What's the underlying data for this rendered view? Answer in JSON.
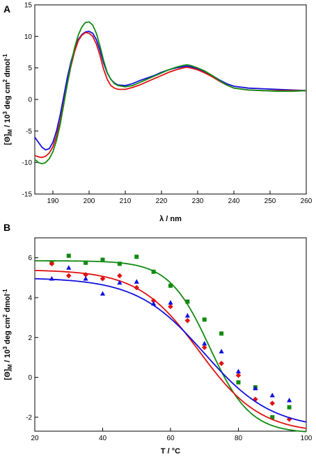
{
  "chart_data": [
    {
      "type": "line",
      "panel_label": "A",
      "xlabel": "λ / nm",
      "ylabel": "[Θ]",
      "ylabel_sub": "M",
      "ylabel_rest": " / 10",
      "ylabel_sup": "3",
      "ylabel_units": " deg cm",
      "ylabel_sup2": "2",
      "ylabel_units2": " dmol",
      "ylabel_sup3": "-1",
      "xlim": [
        185,
        260
      ],
      "ylim": [
        -15,
        15
      ],
      "xticks": [
        190,
        200,
        210,
        220,
        230,
        240,
        250,
        260
      ],
      "yticks": [
        -15,
        -10,
        -5,
        0,
        5,
        10,
        15
      ],
      "grid": false,
      "series": [
        {
          "color": "#1010e0",
          "x": [
            185,
            186,
            187,
            188,
            189,
            190,
            191,
            192,
            193,
            194,
            195,
            196,
            197,
            198,
            199,
            200,
            201,
            202,
            203,
            204,
            205,
            206,
            207,
            208,
            210,
            212,
            214,
            216,
            218,
            220,
            222,
            224,
            226,
            227,
            228,
            230,
            232,
            234,
            236,
            238,
            240,
            244,
            248,
            252,
            256,
            260
          ],
          "y": [
            -6.0,
            -6.8,
            -7.6,
            -8.0,
            -7.8,
            -6.8,
            -5.0,
            -2.5,
            0.5,
            3.5,
            6.0,
            8.0,
            9.5,
            10.3,
            10.7,
            10.8,
            10.5,
            9.5,
            7.8,
            5.8,
            4.2,
            3.2,
            2.6,
            2.3,
            2.2,
            2.5,
            3.0,
            3.4,
            3.8,
            4.3,
            4.7,
            5.0,
            5.2,
            5.3,
            5.2,
            4.9,
            4.4,
            3.8,
            3.1,
            2.5,
            2.1,
            1.8,
            1.7,
            1.6,
            1.5,
            1.4
          ]
        },
        {
          "color": "#e01010",
          "x": [
            185,
            186,
            187,
            188,
            189,
            190,
            191,
            192,
            193,
            194,
            195,
            196,
            197,
            198,
            199,
            200,
            201,
            202,
            203,
            204,
            205,
            206,
            207,
            208,
            210,
            212,
            214,
            216,
            218,
            220,
            222,
            224,
            226,
            227,
            228,
            230,
            232,
            234,
            236,
            238,
            240,
            244,
            248,
            252,
            256,
            260
          ],
          "y": [
            -8.9,
            -9.1,
            -9.2,
            -9.0,
            -8.5,
            -7.5,
            -5.8,
            -3.5,
            -0.5,
            2.5,
            5.3,
            7.6,
            9.3,
            10.2,
            10.6,
            10.5,
            10.0,
            8.8,
            7.0,
            4.8,
            3.2,
            2.2,
            1.8,
            1.6,
            1.6,
            1.9,
            2.3,
            2.8,
            3.3,
            3.8,
            4.3,
            4.7,
            5.0,
            5.1,
            5.0,
            4.7,
            4.2,
            3.6,
            2.9,
            2.3,
            1.8,
            1.5,
            1.4,
            1.4,
            1.4,
            1.4
          ]
        },
        {
          "color": "#108a10",
          "x": [
            185,
            186,
            187,
            188,
            189,
            190,
            191,
            192,
            193,
            194,
            195,
            196,
            197,
            198,
            199,
            200,
            201,
            202,
            203,
            204,
            205,
            206,
            207,
            208,
            210,
            212,
            214,
            216,
            218,
            220,
            222,
            224,
            226,
            227,
            228,
            230,
            232,
            234,
            236,
            238,
            240,
            244,
            248,
            252,
            256,
            260
          ],
          "y": [
            -9.5,
            -10.0,
            -10.2,
            -10.0,
            -9.4,
            -8.3,
            -6.5,
            -4.0,
            -0.8,
            2.5,
            5.6,
            8.2,
            10.2,
            11.5,
            12.2,
            12.3,
            11.8,
            10.5,
            8.5,
            6.2,
            4.3,
            3.2,
            2.5,
            2.2,
            2.0,
            2.2,
            2.7,
            3.2,
            3.7,
            4.2,
            4.7,
            5.1,
            5.4,
            5.5,
            5.4,
            5.0,
            4.5,
            3.8,
            3.0,
            2.3,
            1.8,
            1.5,
            1.4,
            1.3,
            1.3,
            1.4
          ]
        }
      ]
    },
    {
      "type": "scatter",
      "panel_label": "B",
      "xlabel": "T / °C",
      "ylabel": "[Θ]",
      "ylabel_sub": "M",
      "ylabel_rest": " / 10",
      "ylabel_sup": "3",
      "ylabel_units": " deg cm",
      "ylabel_sup2": "2",
      "ylabel_units2": " dmol",
      "ylabel_sup3": "-1",
      "xlim": [
        20,
        100
      ],
      "ylim": [
        -2.7,
        7.0
      ],
      "xticks": [
        20,
        40,
        60,
        80,
        100
      ],
      "yticks": [
        -2,
        0,
        2,
        4,
        6
      ],
      "grid": false,
      "series": [
        {
          "color": "#108a10",
          "marker": "square",
          "x": [
            25,
            30,
            35,
            40,
            45,
            50,
            55,
            60,
            65,
            70,
            75,
            80,
            85,
            90,
            95
          ],
          "y": [
            5.75,
            6.1,
            5.75,
            5.9,
            5.7,
            6.05,
            5.3,
            4.6,
            3.8,
            2.9,
            2.2,
            -0.25,
            -0.5,
            -2.0,
            -1.5
          ],
          "fit": {
            "top": 5.85,
            "bottom": -2.8,
            "tm": 71.5,
            "width": 6.0
          }
        },
        {
          "color": "#e01010",
          "marker": "diamond",
          "x": [
            25,
            30,
            35,
            40,
            45,
            50,
            55,
            60,
            65,
            70,
            75,
            80,
            85,
            90,
            95
          ],
          "y": [
            5.7,
            5.1,
            5.15,
            4.95,
            5.1,
            4.5,
            3.85,
            3.55,
            2.85,
            1.5,
            0.7,
            0.1,
            -1.1,
            -1.3,
            -2.1
          ],
          "fit": {
            "top": 5.4,
            "bottom": -2.8,
            "tm": 68.5,
            "width": 9.0
          }
        },
        {
          "color": "#1010e0",
          "marker": "triangle",
          "x": [
            25,
            30,
            35,
            40,
            45,
            50,
            55,
            60,
            65,
            70,
            75,
            80,
            85,
            90,
            95
          ],
          "y": [
            4.95,
            5.5,
            4.95,
            4.2,
            4.75,
            4.8,
            3.7,
            3.75,
            3.1,
            1.7,
            1.3,
            0.3,
            -0.55,
            -0.9,
            -1.15
          ],
          "fit": {
            "top": 5.0,
            "bottom": -2.6,
            "tm": 70.0,
            "width": 10.0
          }
        }
      ]
    }
  ]
}
